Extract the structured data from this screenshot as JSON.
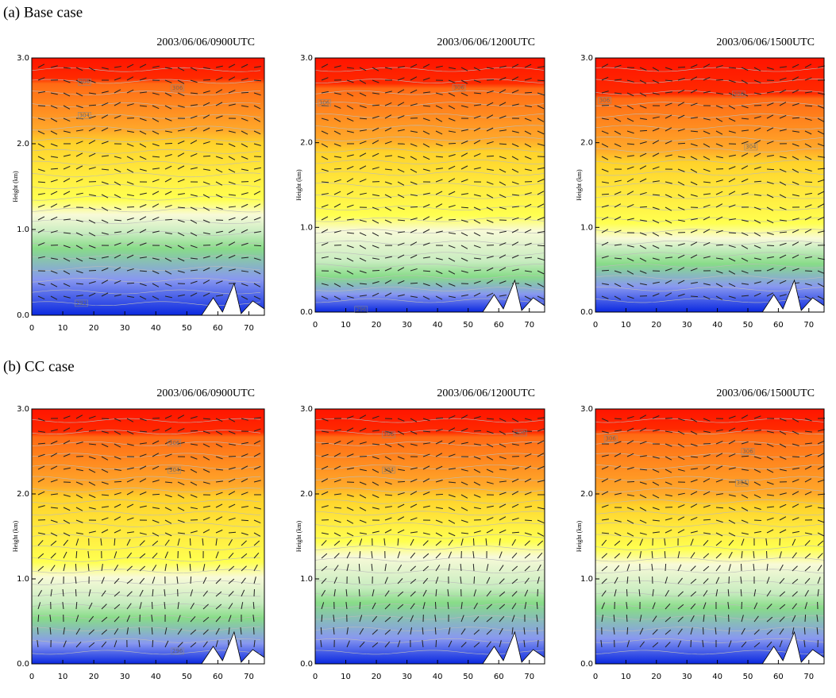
{
  "panel_labels": [
    "(a)  Base case",
    "(b)  CC case"
  ],
  "chart_data": [
    {
      "type": "contour",
      "title": "2003/06/06/0900UTC",
      "y_label": "Height (km)",
      "xlim": [
        0,
        75
      ],
      "ylim": [
        0,
        3
      ],
      "xticks": [
        0,
        10,
        20,
        30,
        40,
        50,
        60,
        70
      ],
      "yticks": [
        {
          "value": 0,
          "label": "0.0"
        },
        {
          "value": 1,
          "label": "1.0"
        },
        {
          "value": 2,
          "label": "2.0"
        },
        {
          "value": 3,
          "label": "3.0"
        }
      ],
      "annotations": [
        {
          "x": 17,
          "y": 2.72,
          "text": "306"
        },
        {
          "x": 47,
          "y": 2.65,
          "text": "306"
        },
        {
          "x": 17,
          "y": 2.33,
          "text": "304"
        },
        {
          "x": 16,
          "y": 0.14,
          "text": "292"
        }
      ]
    },
    {
      "type": "contour",
      "title": "2003/06/06/1200UTC",
      "y_label": "Height (km)",
      "xlim": [
        0,
        75
      ],
      "ylim": [
        0,
        3
      ],
      "xticks": [
        0,
        10,
        20,
        30,
        40,
        50,
        60,
        70
      ],
      "yticks": [
        {
          "value": 0,
          "label": "0.0"
        },
        {
          "value": 1,
          "label": "1.0"
        },
        {
          "value": 2,
          "label": "2.0"
        },
        {
          "value": 3,
          "label": "3.0"
        }
      ],
      "annotations": [
        {
          "x": 3,
          "y": 2.47,
          "text": "306"
        },
        {
          "x": 47,
          "y": 2.65,
          "text": "306"
        },
        {
          "x": 15,
          "y": 0.03,
          "text": "296"
        }
      ]
    },
    {
      "type": "contour",
      "title": "2003/06/06/1500UTC",
      "y_label": "Height (km)",
      "xlim": [
        0,
        75
      ],
      "ylim": [
        0,
        3
      ],
      "xticks": [
        0,
        10,
        20,
        30,
        40,
        50,
        60,
        70
      ],
      "yticks": [
        {
          "value": 0,
          "label": "0.0"
        },
        {
          "value": 1,
          "label": "1.0"
        },
        {
          "value": 2,
          "label": "2.0"
        },
        {
          "value": 3,
          "label": "3.0"
        }
      ],
      "annotations": [
        {
          "x": 3,
          "y": 2.5,
          "text": "306"
        },
        {
          "x": 47,
          "y": 2.57,
          "text": "306"
        },
        {
          "x": 51,
          "y": 1.95,
          "text": "304"
        }
      ]
    },
    {
      "type": "contour",
      "title": "2003/06/06/0900UTC",
      "y_label": "Height (km)",
      "xlim": [
        0,
        75
      ],
      "ylim": [
        0,
        3
      ],
      "xticks": [
        0,
        10,
        20,
        30,
        40,
        50,
        60,
        70
      ],
      "yticks": [
        {
          "value": 0,
          "label": "0.0"
        },
        {
          "value": 1,
          "label": "1.0"
        },
        {
          "value": 2,
          "label": "2.0"
        },
        {
          "value": 3,
          "label": "3.0"
        }
      ],
      "annotations": [
        {
          "x": 46,
          "y": 2.6,
          "text": "306"
        },
        {
          "x": 46,
          "y": 2.28,
          "text": "304"
        },
        {
          "x": 47,
          "y": 0.15,
          "text": "296"
        }
      ]
    },
    {
      "type": "contour",
      "title": "2003/06/06/1200UTC",
      "y_label": "Height (km)",
      "xlim": [
        0,
        75
      ],
      "ylim": [
        0,
        3
      ],
      "xticks": [
        0,
        10,
        20,
        30,
        40,
        50,
        60,
        70
      ],
      "yticks": [
        {
          "value": 0,
          "label": "0.0"
        },
        {
          "value": 1,
          "label": "1.0"
        },
        {
          "value": 2,
          "label": "2.0"
        },
        {
          "value": 3,
          "label": "3.0"
        }
      ],
      "annotations": [
        {
          "x": 24,
          "y": 2.7,
          "text": "306"
        },
        {
          "x": 67,
          "y": 2.72,
          "text": "306"
        },
        {
          "x": 24,
          "y": 2.28,
          "text": "304"
        }
      ]
    },
    {
      "type": "contour",
      "title": "2003/06/06/1500UTC",
      "y_label": "Height (km)",
      "xlim": [
        0,
        75
      ],
      "ylim": [
        0,
        3
      ],
      "xticks": [
        0,
        10,
        20,
        30,
        40,
        50,
        60,
        70
      ],
      "yticks": [
        {
          "value": 0,
          "label": "0.0"
        },
        {
          "value": 1,
          "label": "1.0"
        },
        {
          "value": 2,
          "label": "2.0"
        },
        {
          "value": 3,
          "label": "3.0"
        }
      ],
      "annotations": [
        {
          "x": 5,
          "y": 2.65,
          "text": "306"
        },
        {
          "x": 50,
          "y": 2.5,
          "text": "306"
        },
        {
          "x": 48,
          "y": 2.13,
          "text": "304"
        }
      ]
    }
  ]
}
